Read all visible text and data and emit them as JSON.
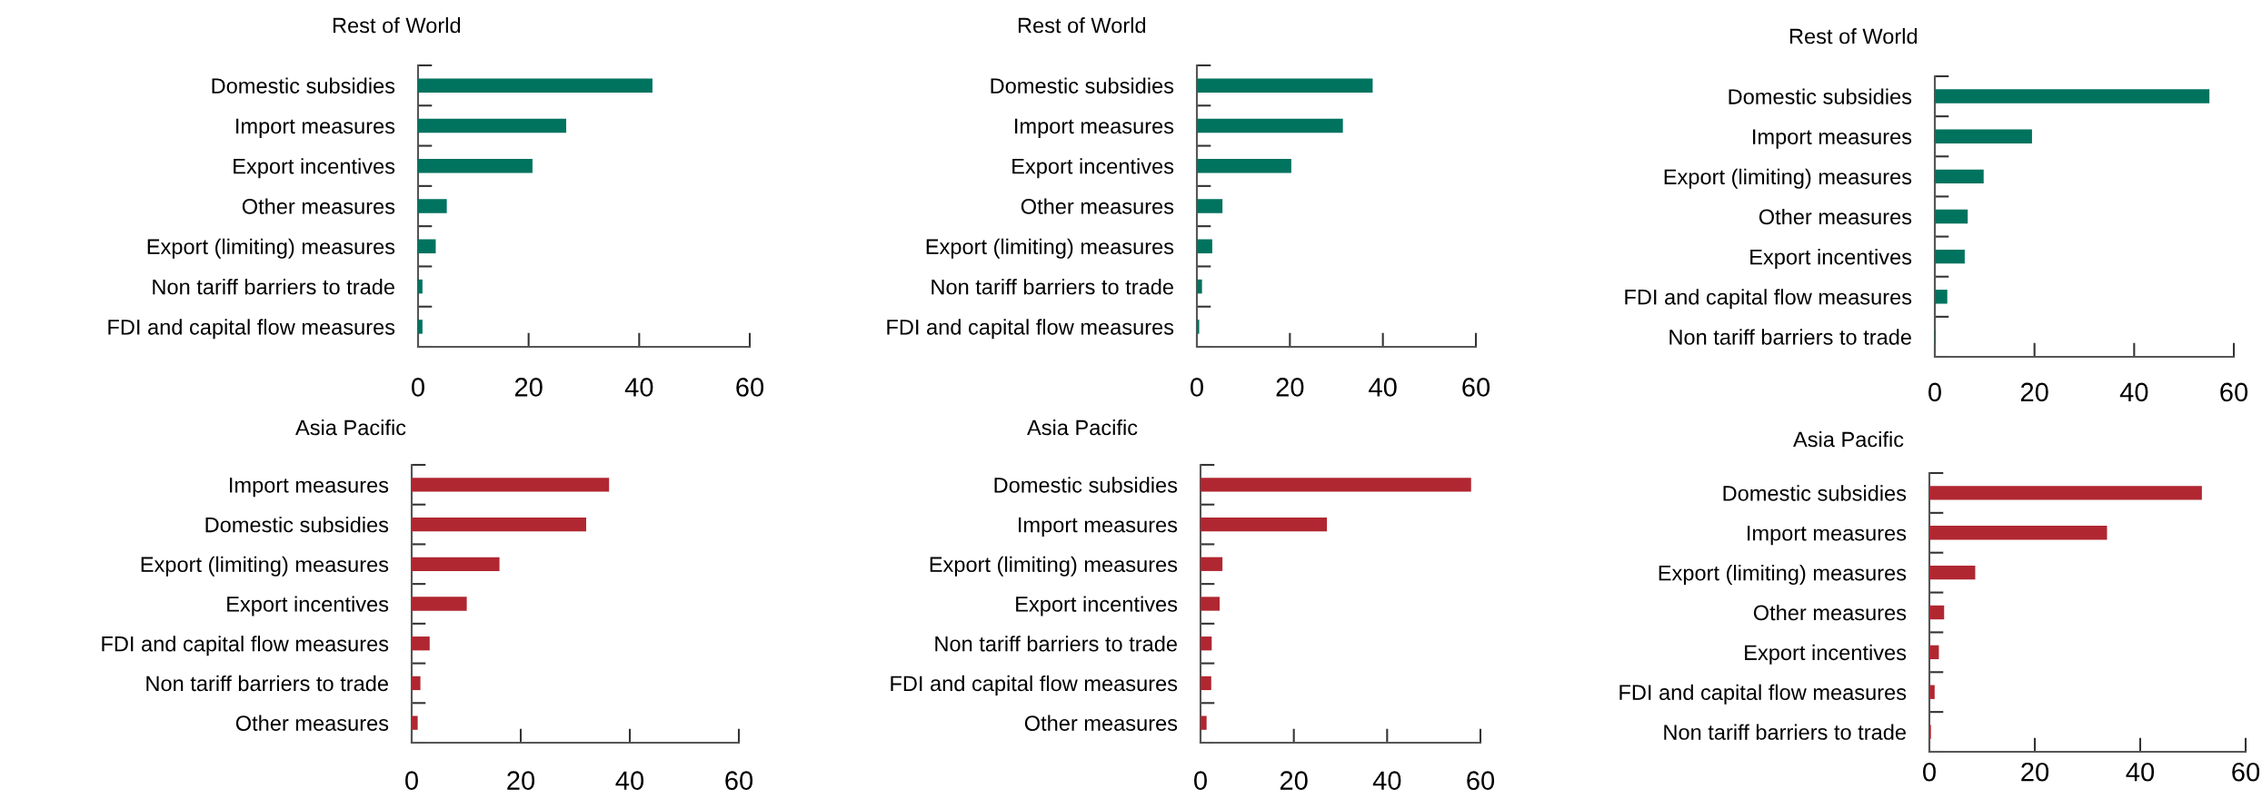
{
  "chart_data": [
    {
      "type": "bar",
      "orientation": "horizontal",
      "title": "Rest of World",
      "categories": [
        "Domestic subsidies",
        "Import measures",
        "Export incentives",
        "Other measures",
        "Export (limiting) measures",
        "Non tariff barriers to trade",
        "FDI and capital flow measures"
      ],
      "values": [
        42.4,
        26.8,
        20.7,
        5.2,
        3.2,
        0.8,
        0.8
      ],
      "color": "#00735f",
      "xlim": [
        0,
        60
      ],
      "xticks": [
        0,
        20,
        40,
        60
      ]
    },
    {
      "type": "bar",
      "orientation": "horizontal",
      "title": "Rest of World",
      "categories": [
        "Domestic subsidies",
        "Import measures",
        "Export incentives",
        "Other measures",
        "Export (limiting) measures",
        "Non tariff barriers to trade",
        "FDI and capital flow measures"
      ],
      "values": [
        37.8,
        31.4,
        20.3,
        5.5,
        3.3,
        1.1,
        0.5
      ],
      "color": "#00735f",
      "xlim": [
        0,
        60
      ],
      "xticks": [
        0,
        20,
        40,
        60
      ]
    },
    {
      "type": "bar",
      "orientation": "horizontal",
      "title": "Rest of World",
      "categories": [
        "Domestic subsidies",
        "Import measures",
        "Export (limiting) measures",
        "Other measures",
        "Export incentives",
        "FDI and capital flow measures",
        "Non tariff barriers to trade"
      ],
      "values": [
        55.1,
        19.5,
        9.8,
        6.6,
        6.0,
        2.5,
        0.2
      ],
      "color": "#00735f",
      "xlim": [
        0,
        60
      ],
      "xticks": [
        0,
        20,
        40,
        60
      ]
    },
    {
      "type": "bar",
      "orientation": "horizontal",
      "title": "Asia Pacific",
      "categories": [
        "Import measures",
        "Domestic subsidies",
        "Export (limiting) measures",
        "Export incentives",
        "FDI and capital flow measures",
        "Non tariff barriers to trade",
        "Other measures"
      ],
      "values": [
        36.2,
        32.0,
        16.1,
        10.1,
        3.3,
        1.6,
        1.1
      ],
      "color": "#b02731",
      "xlim": [
        0,
        60
      ],
      "xticks": [
        0,
        20,
        40,
        60
      ]
    },
    {
      "type": "bar",
      "orientation": "horizontal",
      "title": "Asia Pacific",
      "categories": [
        "Domestic subsidies",
        "Import measures",
        "Export (limiting) measures",
        "Export incentives",
        "Non tariff barriers to trade",
        "FDI and capital flow measures",
        "Other measures"
      ],
      "values": [
        58.0,
        27.1,
        4.7,
        4.1,
        2.4,
        2.3,
        1.3
      ],
      "color": "#b02731",
      "xlim": [
        0,
        60
      ],
      "xticks": [
        0,
        20,
        40,
        60
      ]
    },
    {
      "type": "bar",
      "orientation": "horizontal",
      "title": "Asia Pacific",
      "categories": [
        "Domestic subsidies",
        "Import measures",
        "Export (limiting) measures",
        "Other measures",
        "Export incentives",
        "FDI and capital flow measures",
        "Non tariff barriers to trade"
      ],
      "values": [
        51.7,
        33.7,
        8.7,
        2.8,
        1.8,
        1.0,
        0.3
      ],
      "color": "#b02731",
      "xlim": [
        0,
        60
      ],
      "xticks": [
        0,
        20,
        40,
        60
      ]
    }
  ]
}
